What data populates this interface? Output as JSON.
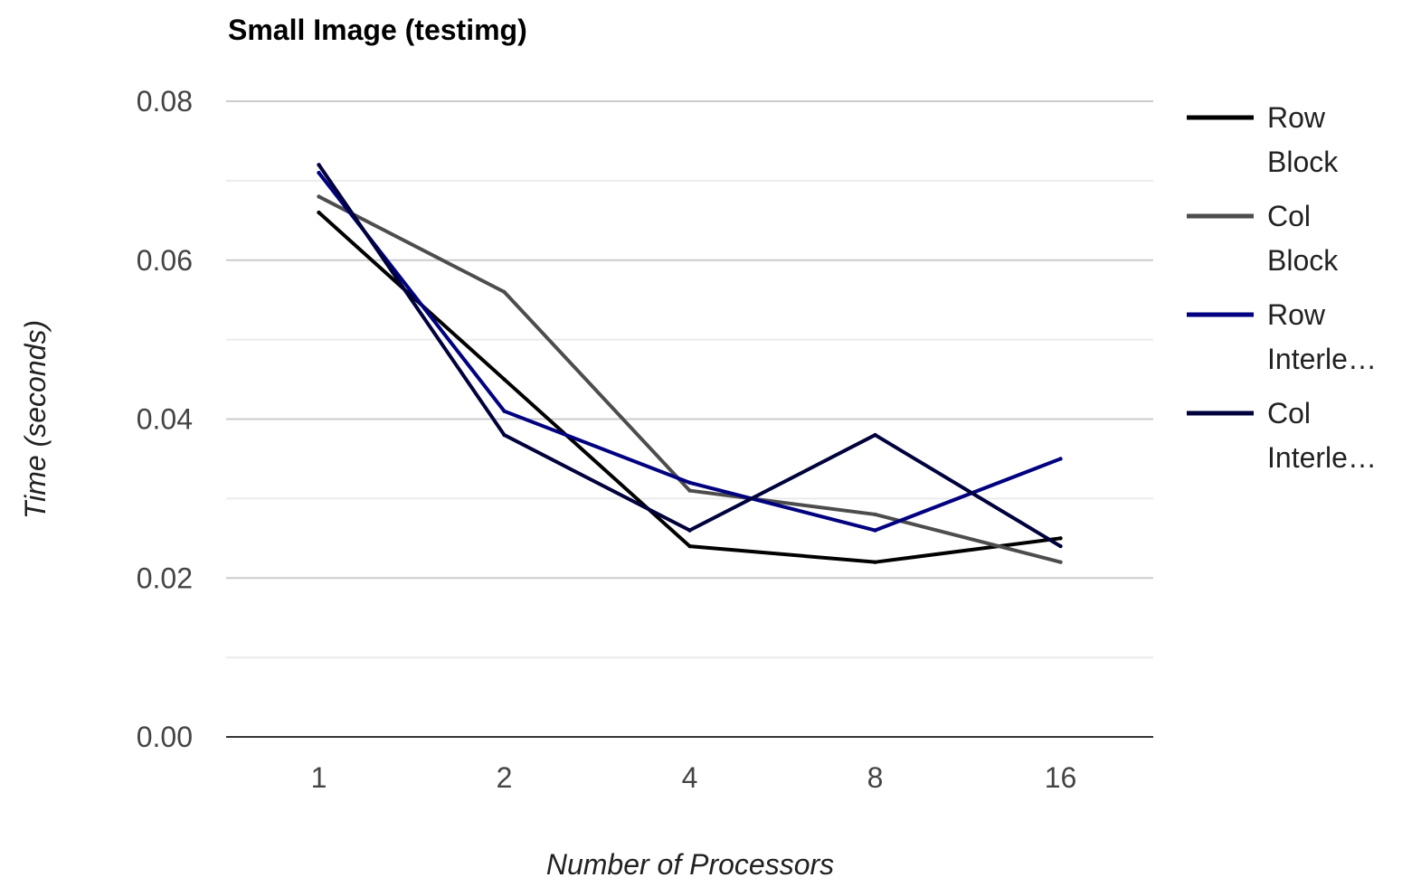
{
  "chart_data": {
    "type": "line",
    "title": "Small Image (testimg)",
    "xlabel": "Number of Processors",
    "ylabel": "Time (seconds)",
    "categories": [
      "1",
      "2",
      "4",
      "8",
      "16"
    ],
    "ylim": [
      0,
      0.08
    ],
    "yticks": [
      "0.00",
      "0.02",
      "0.04",
      "0.06",
      "0.08"
    ],
    "grid": true,
    "legend_position": "right",
    "series": [
      {
        "name": "Row Block",
        "legend_lines": [
          "Row",
          "Block"
        ],
        "color": "#000000",
        "values": [
          0.066,
          0.045,
          0.024,
          0.022,
          0.025
        ]
      },
      {
        "name": "Col Block",
        "legend_lines": [
          "Col",
          "Block"
        ],
        "color": "#4d4d4d",
        "values": [
          0.068,
          0.056,
          0.031,
          0.028,
          0.022
        ]
      },
      {
        "name": "Row Interle…",
        "legend_lines": [
          "Row",
          "Interle…"
        ],
        "color": "#000080",
        "values": [
          0.071,
          0.041,
          0.032,
          0.026,
          0.035
        ]
      },
      {
        "name": "Col Interle…",
        "legend_lines": [
          "Col",
          "Interle…"
        ],
        "color": "#00003c",
        "values": [
          0.072,
          0.038,
          0.026,
          0.038,
          0.024
        ]
      }
    ]
  }
}
